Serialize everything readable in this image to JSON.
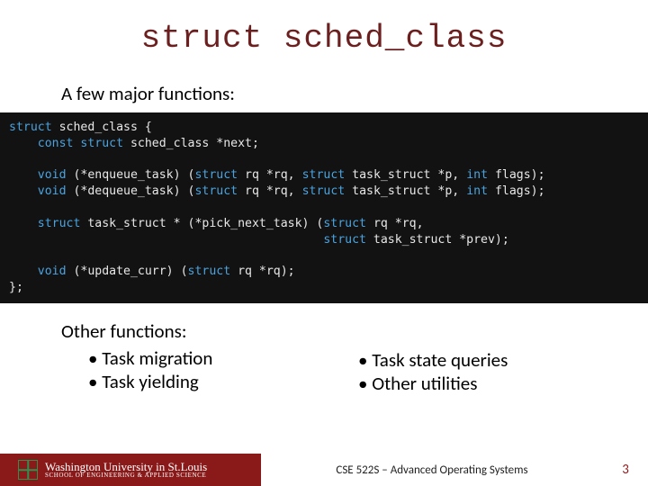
{
  "title": "struct sched_class",
  "subtitle": "A few major functions:",
  "colors": {
    "title_color": "#6b1f1f",
    "code_bg": "#121212",
    "code_fg": "#e8e8e8",
    "keyword_type": "#4aa3df",
    "footer_red": "#8a1a1a",
    "logo_green": "#2f8f4f"
  },
  "code": {
    "l1a": "struct",
    "l1b": " sched_class {",
    "l2a": "    const struct",
    "l2b": " sched_class *next;",
    "blank": " ",
    "l3a": "    void",
    "l3b": " (*enqueue_task) (",
    "l3c": "struct",
    "l3d": " rq *rq, ",
    "l3e": "struct",
    "l3f": " task_struct *p, ",
    "l3g": "int",
    "l3h": " flags);",
    "l4a": "    void",
    "l4b": " (*dequeue_task) (",
    "l4c": "struct",
    "l4d": " rq *rq, ",
    "l4e": "struct",
    "l4f": " task_struct *p, ",
    "l4g": "int",
    "l4h": " flags);",
    "l5a": "    struct",
    "l5b": " task_struct * (*pick_next_task) (",
    "l5c": "struct",
    "l5d": " rq *rq,",
    "l6a": "                                            ",
    "l6b": "struct",
    "l6c": " task_struct *prev);",
    "l7a": "    void",
    "l7b": " (*update_curr) (",
    "l7c": "struct",
    "l7d": " rq *rq);",
    "l8": "};"
  },
  "other_label": "Other functions:",
  "left_bullets": [
    "Task migration",
    "Task yielding"
  ],
  "right_bullets": [
    "Task state queries",
    "Other utilities"
  ],
  "footer": {
    "university_line1": "Washington University in St.Louis",
    "university_line2": "SCHOOL OF ENGINEERING & APPLIED SCIENCE",
    "course": "CSE 522S – Advanced Operating Systems",
    "page": "3"
  }
}
